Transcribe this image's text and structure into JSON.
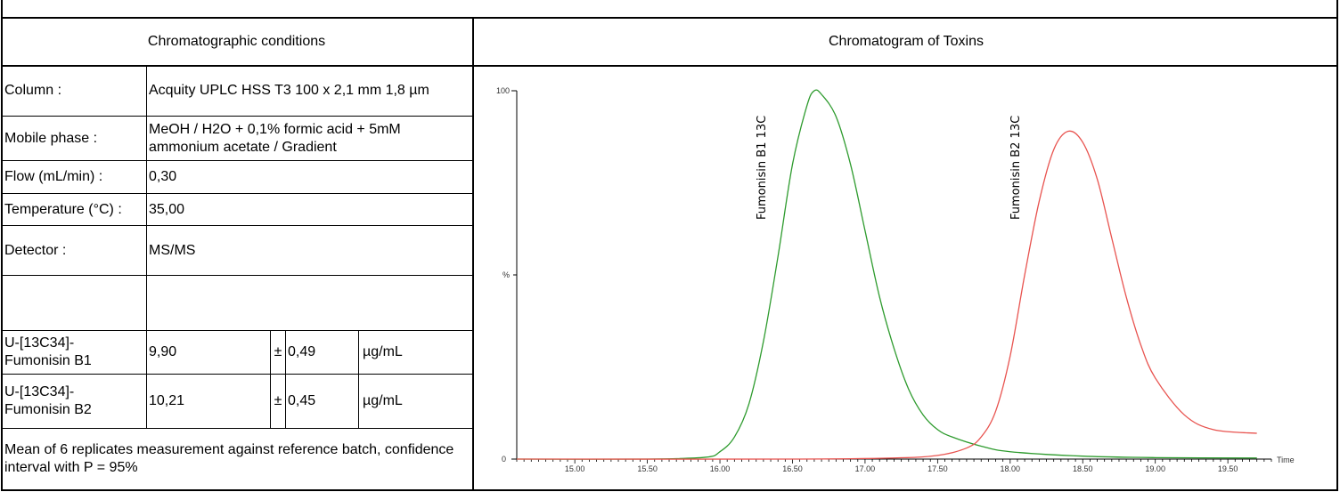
{
  "left_header": "Chromatographic conditions",
  "right_header": "Chromatogram of Toxins",
  "rows": {
    "column_label": "Column :",
    "column_value": "Acquity UPLC HSS T3 100 x 2,1 mm 1,8 µm",
    "mobile_label": "Mobile phase :",
    "mobile_value": "MeOH / H2O + 0,1% formic acid + 5mM ammonium acetate / Gradient",
    "flow_label": "Flow (mL/min) :",
    "flow_value": "0,30",
    "temp_label": "Temperature (°C) :",
    "temp_value": "35,00",
    "detector_label": "Detector :",
    "detector_value": "MS/MS"
  },
  "concentrations": [
    {
      "label": "U-[13C34]-Fumonisin B1",
      "value": "9,90",
      "pm": "±",
      "uncertainty": "0,49",
      "unit": "µg/mL"
    },
    {
      "label": "U-[13C34]-Fumonisin B2",
      "value": "10,21",
      "pm": "±",
      "uncertainty": "0,45",
      "unit": "µg/mL"
    }
  ],
  "footnote": "Mean of 6 replicates measurement against reference batch, confidence interval with P = 95%",
  "chart_data": {
    "type": "line",
    "xlabel": "Time",
    "ylabel": "%",
    "xlim": [
      14.6,
      19.8
    ],
    "ylim": [
      0,
      100
    ],
    "y_ticks": [
      "100"
    ],
    "x_ticks": [
      "15.00",
      "15.50",
      "16.00",
      "16.50",
      "17.00",
      "17.50",
      "18.00",
      "18.50",
      "19.00",
      "19.50"
    ],
    "series": [
      {
        "name": "Fumonisin B1 13C",
        "color": "#2e9b2e",
        "x": [
          14.6,
          15.5,
          15.9,
          16.0,
          16.1,
          16.2,
          16.3,
          16.4,
          16.5,
          16.6,
          16.65,
          16.7,
          16.8,
          16.9,
          17.0,
          17.1,
          17.2,
          17.3,
          17.4,
          17.5,
          17.6,
          17.8,
          18.0,
          18.5,
          19.0,
          19.7
        ],
        "y": [
          0,
          0,
          0.5,
          2,
          6,
          15,
          32,
          55,
          80,
          96,
          100,
          99,
          93,
          80,
          62,
          44,
          30,
          19,
          12,
          8,
          6,
          3.5,
          2,
          0.8,
          0.4,
          0.3
        ]
      },
      {
        "name": "Fumonisin B2 13C",
        "color": "#e8534f",
        "x": [
          14.6,
          16.5,
          17.2,
          17.5,
          17.7,
          17.8,
          17.9,
          18.0,
          18.1,
          18.2,
          18.3,
          18.4,
          18.5,
          18.6,
          18.7,
          18.8,
          18.9,
          19.0,
          19.2,
          19.4,
          19.7
        ],
        "y": [
          0,
          0,
          0.3,
          1,
          3,
          6,
          13,
          28,
          50,
          70,
          84,
          89,
          86,
          76,
          60,
          44,
          31,
          22,
          12,
          8,
          7
        ]
      }
    ]
  }
}
